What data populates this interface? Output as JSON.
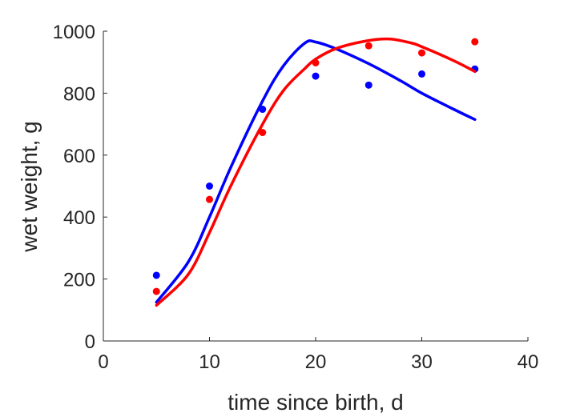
{
  "chart_data": {
    "type": "scatter",
    "xlabel": "time since birth, d",
    "ylabel": "wet weight, g",
    "xlim": [
      0,
      40
    ],
    "ylim": [
      0,
      1000
    ],
    "xticks": [
      0,
      10,
      20,
      30,
      40
    ],
    "yticks": [
      0,
      200,
      400,
      600,
      800,
      1000
    ],
    "xtick_labels": [
      "0",
      "10",
      "20",
      "30",
      "40"
    ],
    "ytick_labels": [
      "0",
      "200",
      "400",
      "600",
      "800",
      "1000"
    ],
    "grid": false,
    "series": [
      {
        "color": "#0000ff",
        "points": [
          [
            5,
            212
          ],
          [
            10,
            500
          ],
          [
            15,
            748
          ],
          [
            20,
            855
          ],
          [
            25,
            826
          ],
          [
            30,
            862
          ],
          [
            35,
            878
          ]
        ],
        "fit": [
          [
            5,
            125
          ],
          [
            8,
            255
          ],
          [
            10,
            400
          ],
          [
            12,
            560
          ],
          [
            15,
            775
          ],
          [
            17,
            890
          ],
          [
            19,
            962
          ],
          [
            20,
            965
          ],
          [
            22,
            942
          ],
          [
            25,
            895
          ],
          [
            28,
            840
          ],
          [
            30,
            800
          ],
          [
            33,
            748
          ],
          [
            35,
            715
          ]
        ]
      },
      {
        "color": "#ff0000",
        "points": [
          [
            5,
            160
          ],
          [
            10,
            457
          ],
          [
            15,
            673
          ],
          [
            20,
            898
          ],
          [
            25,
            953
          ],
          [
            30,
            930
          ],
          [
            35,
            966
          ]
        ],
        "fit": [
          [
            5,
            115
          ],
          [
            8,
            215
          ],
          [
            10,
            350
          ],
          [
            12,
            500
          ],
          [
            15,
            700
          ],
          [
            17,
            810
          ],
          [
            19,
            880
          ],
          [
            20,
            910
          ],
          [
            22,
            945
          ],
          [
            25,
            970
          ],
          [
            27,
            975
          ],
          [
            29,
            962
          ],
          [
            30,
            950
          ],
          [
            33,
            905
          ],
          [
            35,
            870
          ]
        ]
      }
    ]
  }
}
